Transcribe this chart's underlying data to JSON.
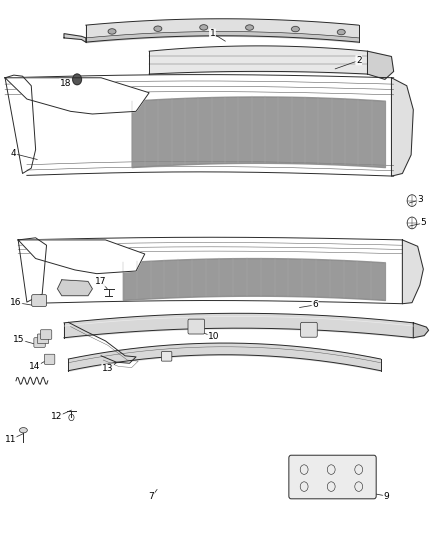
{
  "background_color": "#ffffff",
  "line_color": "#2a2a2a",
  "label_color": "#000000",
  "fig_width": 4.38,
  "fig_height": 5.33,
  "dpi": 100,
  "parts_labels": [
    [
      1,
      0.485,
      0.938,
      0.52,
      0.921
    ],
    [
      2,
      0.82,
      0.888,
      0.76,
      0.87
    ],
    [
      3,
      0.96,
      0.626,
      0.93,
      0.618
    ],
    [
      4,
      0.03,
      0.712,
      0.09,
      0.7
    ],
    [
      5,
      0.968,
      0.582,
      0.93,
      0.575
    ],
    [
      6,
      0.72,
      0.428,
      0.678,
      0.422
    ],
    [
      7,
      0.345,
      0.068,
      0.362,
      0.085
    ],
    [
      9,
      0.883,
      0.068,
      0.84,
      0.075
    ],
    [
      10,
      0.488,
      0.368,
      0.452,
      0.378
    ],
    [
      11,
      0.022,
      0.175,
      0.058,
      0.188
    ],
    [
      12,
      0.128,
      0.218,
      0.168,
      0.232
    ],
    [
      13,
      0.245,
      0.308,
      0.27,
      0.322
    ],
    [
      14,
      0.078,
      0.312,
      0.115,
      0.328
    ],
    [
      15,
      0.042,
      0.362,
      0.088,
      0.352
    ],
    [
      16,
      0.035,
      0.432,
      0.082,
      0.426
    ],
    [
      17,
      0.228,
      0.472,
      0.248,
      0.454
    ],
    [
      18,
      0.148,
      0.844,
      0.175,
      0.852
    ]
  ]
}
